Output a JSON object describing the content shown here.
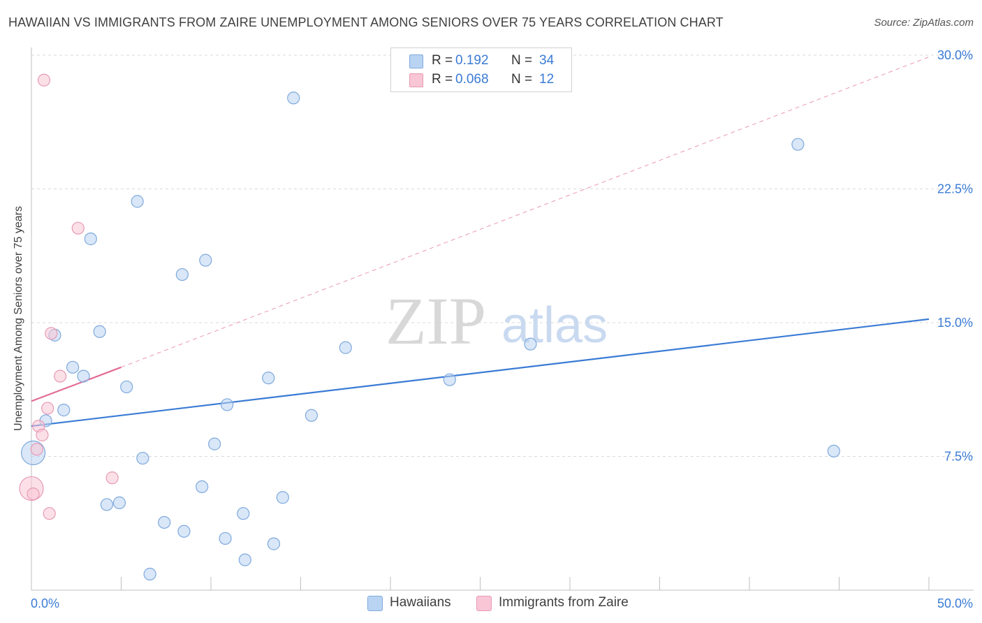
{
  "header": {
    "title": "HAWAIIAN VS IMMIGRANTS FROM ZAIRE UNEMPLOYMENT AMONG SENIORS OVER 75 YEARS CORRELATION CHART",
    "source": "Source: ZipAtlas.com"
  },
  "watermark": {
    "zip": "ZIP",
    "atlas": "atlas"
  },
  "legend": {
    "r_label": "R =",
    "n_label": "N =",
    "rows": [
      {
        "swatch_color": "#b9d4f3",
        "r_value": "0.192",
        "n_value": "34"
      },
      {
        "swatch_color": "#f9c6d6",
        "r_value": "0.068",
        "n_value": "12"
      }
    ]
  },
  "bottom_legend": [
    {
      "label": "Hawaiians",
      "swatch_color": "#b9d4f3"
    },
    {
      "label": "Immigrants from Zaire",
      "swatch_color": "#f9c6d6"
    }
  ],
  "chart_data": {
    "type": "scatter",
    "title": "HAWAIIAN VS IMMIGRANTS FROM ZAIRE UNEMPLOYMENT AMONG SENIORS OVER 75 YEARS CORRELATION CHART",
    "xlabel": "",
    "ylabel": "Unemployment Among Seniors over 75 years",
    "xlim": [
      0,
      50
    ],
    "ylim": [
      0,
      30
    ],
    "x_tick_labels": [
      "0.0%",
      "50.0%"
    ],
    "y_ticks": [
      7.5,
      15.0,
      22.5,
      30.0
    ],
    "y_tick_labels": [
      "7.5%",
      "15.0%",
      "22.5%",
      "30.0%"
    ],
    "grid": true,
    "colors": {
      "hawaiians": "#3a7bd5",
      "zaire": "#e26b96"
    },
    "series": [
      {
        "name": "Hawaiians",
        "r": 0.192,
        "n": 34,
        "points": [
          {
            "x": 0.1,
            "y": 7.7,
            "big": true
          },
          {
            "x": 0.8,
            "y": 9.5
          },
          {
            "x": 1.3,
            "y": 14.3
          },
          {
            "x": 1.8,
            "y": 10.1
          },
          {
            "x": 2.3,
            "y": 12.5
          },
          {
            "x": 2.9,
            "y": 12.0
          },
          {
            "x": 3.3,
            "y": 19.7
          },
          {
            "x": 3.8,
            "y": 14.5
          },
          {
            "x": 4.2,
            "y": 4.8
          },
          {
            "x": 4.9,
            "y": 4.9
          },
          {
            "x": 5.3,
            "y": 11.4
          },
          {
            "x": 5.9,
            "y": 21.8
          },
          {
            "x": 6.2,
            "y": 7.4
          },
          {
            "x": 6.6,
            "y": 0.9
          },
          {
            "x": 7.4,
            "y": 3.8
          },
          {
            "x": 8.4,
            "y": 17.7
          },
          {
            "x": 8.5,
            "y": 3.3
          },
          {
            "x": 9.5,
            "y": 5.8
          },
          {
            "x": 9.7,
            "y": 18.5
          },
          {
            "x": 10.2,
            "y": 8.2
          },
          {
            "x": 10.8,
            "y": 2.9
          },
          {
            "x": 10.9,
            "y": 10.4
          },
          {
            "x": 11.8,
            "y": 4.3
          },
          {
            "x": 11.9,
            "y": 1.7
          },
          {
            "x": 13.2,
            "y": 11.9
          },
          {
            "x": 13.5,
            "y": 2.6
          },
          {
            "x": 14.0,
            "y": 5.2
          },
          {
            "x": 15.6,
            "y": 9.8
          },
          {
            "x": 14.6,
            "y": 27.6
          },
          {
            "x": 17.5,
            "y": 13.6
          },
          {
            "x": 23.3,
            "y": 11.8
          },
          {
            "x": 27.8,
            "y": 13.8
          },
          {
            "x": 42.7,
            "y": 25.0
          },
          {
            "x": 44.7,
            "y": 7.8
          }
        ]
      },
      {
        "name": "Immigrants from Zaire",
        "r": 0.068,
        "n": 12,
        "points": [
          {
            "x": 0.0,
            "y": 5.7,
            "big": true
          },
          {
            "x": 0.1,
            "y": 5.4
          },
          {
            "x": 0.3,
            "y": 7.9
          },
          {
            "x": 0.4,
            "y": 9.2
          },
          {
            "x": 0.6,
            "y": 8.7
          },
          {
            "x": 0.7,
            "y": 28.6
          },
          {
            "x": 0.9,
            "y": 10.2
          },
          {
            "x": 1.0,
            "y": 4.3
          },
          {
            "x": 1.1,
            "y": 14.4
          },
          {
            "x": 1.6,
            "y": 12.0
          },
          {
            "x": 2.6,
            "y": 20.3
          },
          {
            "x": 4.5,
            "y": 6.3
          }
        ]
      }
    ],
    "trend_lines": [
      {
        "series": "Hawaiians",
        "style": "solid",
        "x": [
          0,
          50
        ],
        "y": [
          9.2,
          15.2
        ]
      },
      {
        "series": "Immigrants from Zaire",
        "style": "solid",
        "x": [
          0,
          5.0
        ],
        "y": [
          10.6,
          12.5
        ]
      },
      {
        "series": "Immigrants from Zaire",
        "style": "dashed",
        "x": [
          5.0,
          50
        ],
        "y": [
          12.5,
          29.9
        ]
      }
    ]
  }
}
